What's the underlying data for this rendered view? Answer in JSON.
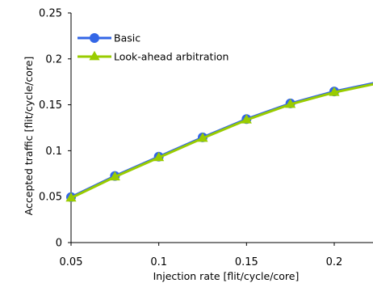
{
  "chart_data": {
    "type": "line",
    "xlabel": "Injection rate [flit/cycle/core]",
    "ylabel": "Accepted traffic [flit/cycle/core]",
    "xlim": [
      0.05,
      0.22
    ],
    "ylim": [
      0,
      0.25
    ],
    "x_ticks": [
      "0.05",
      "0.1",
      "0.15",
      "0.2"
    ],
    "y_ticks": [
      "0",
      "0.05",
      "0.1",
      "0.15",
      "0.2",
      "0.25"
    ],
    "grid": false,
    "legend_position": "top-left",
    "x": [
      0.05,
      0.075,
      0.1,
      0.125,
      0.15,
      0.175,
      0.2,
      0.225
    ],
    "series": [
      {
        "name": "Basic",
        "color": "#3366e6",
        "marker": "circle",
        "values": [
          0.0495,
          0.0725,
          0.0935,
          0.1145,
          0.1345,
          0.1515,
          0.1645,
          0.1745
        ]
      },
      {
        "name": "Look-ahead arbitration",
        "color": "#99cc00",
        "marker": "triangle",
        "values": [
          0.0485,
          0.0715,
          0.0925,
          0.1135,
          0.1335,
          0.1505,
          0.1635,
          0.1735
        ]
      }
    ]
  }
}
